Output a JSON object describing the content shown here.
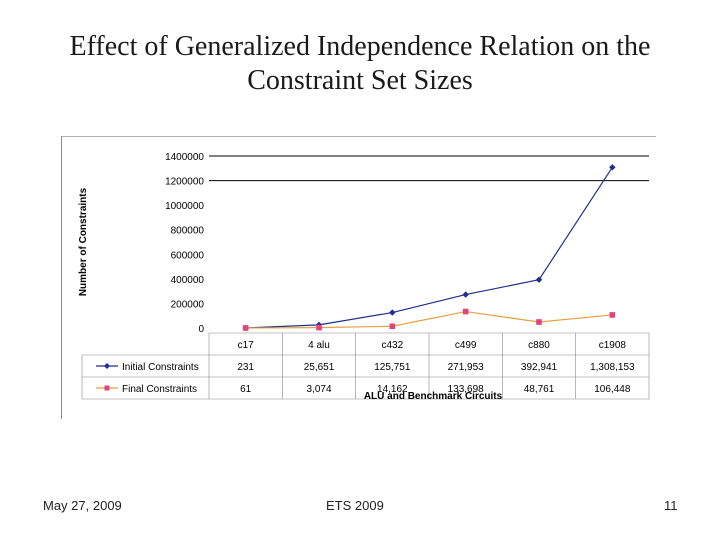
{
  "slide": {
    "title_line1": "Effect of Generalized Independence Relation on the",
    "title_line2": "Constraint Set Sizes",
    "footer_date": "May 27, 2009",
    "footer_center": "ETS 2009",
    "page_number": "11"
  },
  "chart_data": {
    "type": "line",
    "ylabel": "Number of Constraints",
    "xlabel": "ALU and Benchmark Circuits",
    "ylim": [
      0,
      1400000
    ],
    "yticks": [
      "0",
      "200000",
      "400000",
      "600000",
      "800000",
      "1000000",
      "1200000",
      "1400000"
    ],
    "grid": true,
    "categories": [
      "c17",
      "4 alu",
      "c432",
      "c499",
      "c880",
      "c1908"
    ],
    "series": [
      {
        "name": "Initial Constraints",
        "color": "#1f2f8f",
        "marker": "diamond",
        "values": [
          231,
          25651,
          125751,
          271953,
          392941,
          1308153
        ],
        "labels": [
          "231",
          "25,651",
          "125,751",
          "271,953",
          "392,941",
          "1,308,153"
        ]
      },
      {
        "name": "Final Constraints",
        "color": "#e0447a",
        "line_color": "#e8a040",
        "marker": "square",
        "values": [
          61,
          3074,
          14162,
          133698,
          48761,
          106448
        ],
        "labels": [
          "61",
          "3,074",
          "14,162",
          "133,698",
          "48,761",
          "106,448"
        ]
      }
    ]
  }
}
